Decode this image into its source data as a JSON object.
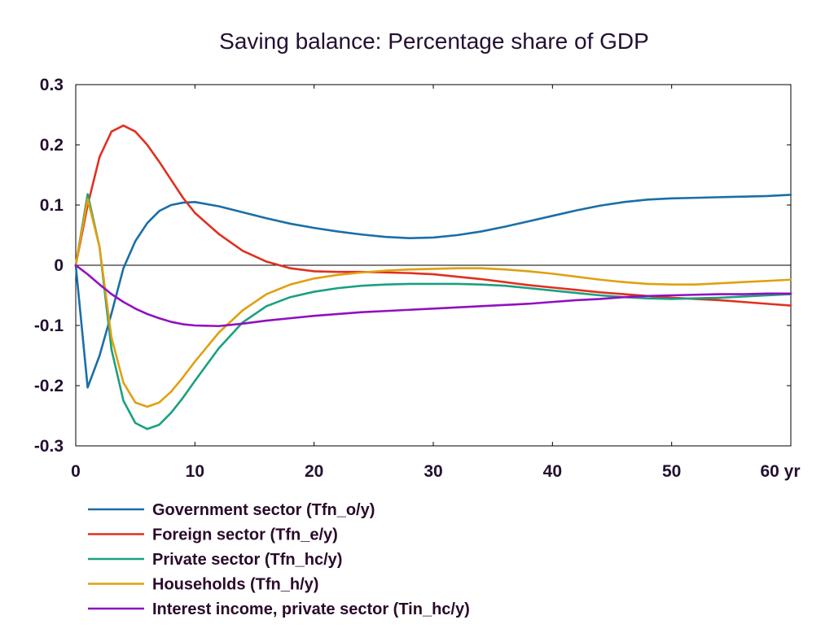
{
  "chart_data": {
    "type": "line",
    "title": "Saving balance: Percentage share of GDP",
    "xlabel": "",
    "ylabel": "",
    "xlim": [
      0,
      60
    ],
    "ylim": [
      -0.3,
      0.3
    ],
    "x_ticks": [
      0,
      10,
      20,
      30,
      40,
      50,
      60
    ],
    "x_tick_labels": [
      "0",
      "10",
      "20",
      "30",
      "40",
      "50",
      "60 yr"
    ],
    "y_ticks": [
      0.3,
      0.2,
      0.1,
      0,
      -0.1,
      -0.2,
      -0.3
    ],
    "y_tick_labels": [
      "0.3",
      "0.2",
      "0.1",
      "0",
      "-0.1",
      "-0.2",
      "-0.3"
    ],
    "grid": false,
    "zero_line": true,
    "legend_position": "below",
    "series": [
      {
        "name": "Government sector (Tfn_o/y)",
        "color": "#1a6ea8",
        "x": [
          0,
          1,
          2,
          3,
          4,
          5,
          6,
          7,
          8,
          9,
          10,
          12,
          14,
          16,
          18,
          20,
          22,
          24,
          26,
          28,
          30,
          32,
          34,
          36,
          38,
          40,
          42,
          44,
          46,
          48,
          50,
          52,
          54,
          56,
          58,
          60
        ],
        "y": [
          0,
          -0.203,
          -0.15,
          -0.08,
          -0.005,
          0.04,
          0.07,
          0.09,
          0.1,
          0.104,
          0.105,
          0.098,
          0.088,
          0.078,
          0.069,
          0.062,
          0.056,
          0.051,
          0.047,
          0.045,
          0.046,
          0.05,
          0.056,
          0.064,
          0.073,
          0.082,
          0.091,
          0.099,
          0.105,
          0.109,
          0.111,
          0.112,
          0.113,
          0.114,
          0.115,
          0.117
        ]
      },
      {
        "name": "Foreign sector (Tfn_e/y)",
        "color": "#e03020",
        "x": [
          0,
          1,
          2,
          3,
          4,
          5,
          6,
          7,
          8,
          9,
          10,
          12,
          14,
          16,
          18,
          20,
          22,
          24,
          26,
          28,
          30,
          32,
          34,
          36,
          38,
          40,
          42,
          44,
          46,
          48,
          50,
          52,
          54,
          56,
          58,
          60
        ],
        "y": [
          0,
          0.1,
          0.18,
          0.222,
          0.232,
          0.222,
          0.2,
          0.172,
          0.142,
          0.112,
          0.087,
          0.052,
          0.024,
          0.006,
          -0.005,
          -0.01,
          -0.011,
          -0.011,
          -0.012,
          -0.013,
          -0.015,
          -0.019,
          -0.023,
          -0.028,
          -0.033,
          -0.037,
          -0.041,
          -0.045,
          -0.048,
          -0.051,
          -0.054,
          -0.056,
          -0.058,
          -0.061,
          -0.064,
          -0.067
        ]
      },
      {
        "name": "Private sector (Tfn_hc/y)",
        "color": "#1aa080",
        "x": [
          0,
          1,
          2,
          3,
          4,
          5,
          6,
          7,
          8,
          9,
          10,
          12,
          14,
          16,
          18,
          20,
          22,
          24,
          26,
          28,
          30,
          32,
          34,
          36,
          38,
          40,
          42,
          44,
          46,
          48,
          50,
          52,
          54,
          56,
          58,
          60
        ],
        "y": [
          0,
          0.118,
          0.03,
          -0.14,
          -0.225,
          -0.262,
          -0.272,
          -0.265,
          -0.245,
          -0.22,
          -0.192,
          -0.138,
          -0.095,
          -0.068,
          -0.053,
          -0.044,
          -0.038,
          -0.034,
          -0.032,
          -0.031,
          -0.031,
          -0.031,
          -0.032,
          -0.034,
          -0.038,
          -0.042,
          -0.046,
          -0.05,
          -0.053,
          -0.055,
          -0.056,
          -0.055,
          -0.054,
          -0.052,
          -0.05,
          -0.048
        ]
      },
      {
        "name": "Households (Tfn_h/y)",
        "color": "#e0a010",
        "x": [
          0,
          1,
          2,
          3,
          4,
          5,
          6,
          7,
          8,
          9,
          10,
          12,
          14,
          16,
          18,
          20,
          22,
          24,
          26,
          28,
          30,
          32,
          34,
          36,
          38,
          40,
          42,
          44,
          46,
          48,
          50,
          52,
          54,
          56,
          58,
          60
        ],
        "y": [
          0,
          0.11,
          0.03,
          -0.12,
          -0.195,
          -0.228,
          -0.235,
          -0.228,
          -0.21,
          -0.186,
          -0.16,
          -0.112,
          -0.075,
          -0.048,
          -0.032,
          -0.022,
          -0.016,
          -0.012,
          -0.009,
          -0.007,
          -0.006,
          -0.005,
          -0.005,
          -0.007,
          -0.01,
          -0.014,
          -0.019,
          -0.024,
          -0.028,
          -0.031,
          -0.032,
          -0.032,
          -0.03,
          -0.028,
          -0.026,
          -0.024
        ]
      },
      {
        "name": "Interest income, private sector (Tin_hc/y)",
        "color": "#9010c0",
        "x": [
          0,
          1,
          2,
          3,
          4,
          5,
          6,
          7,
          8,
          9,
          10,
          12,
          14,
          16,
          18,
          20,
          22,
          24,
          26,
          28,
          30,
          32,
          34,
          36,
          38,
          40,
          42,
          44,
          46,
          48,
          50,
          52,
          54,
          56,
          58,
          60
        ],
        "y": [
          0,
          -0.015,
          -0.032,
          -0.048,
          -0.061,
          -0.072,
          -0.081,
          -0.088,
          -0.094,
          -0.098,
          -0.1,
          -0.101,
          -0.097,
          -0.092,
          -0.088,
          -0.084,
          -0.081,
          -0.078,
          -0.076,
          -0.074,
          -0.072,
          -0.07,
          -0.068,
          -0.066,
          -0.064,
          -0.061,
          -0.058,
          -0.056,
          -0.053,
          -0.051,
          -0.05,
          -0.049,
          -0.048,
          -0.048,
          -0.047,
          -0.047
        ]
      }
    ]
  }
}
